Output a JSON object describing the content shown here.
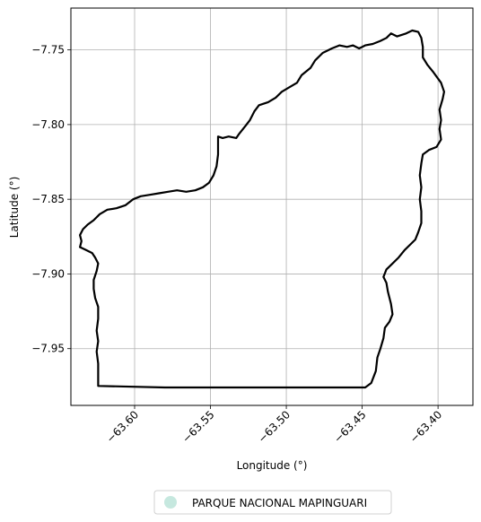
{
  "figure": {
    "xlabel": "Longitude (°)",
    "ylabel": "Latitude (°)",
    "legend_position": "bottom-center"
  },
  "chart_data": {
    "type": "map",
    "xlim": [
      -63.642,
      -63.377
    ],
    "ylim": [
      -7.988,
      -7.722
    ],
    "grid": true,
    "x_ticks": [
      {
        "value": -63.6,
        "label": "−63.60"
      },
      {
        "value": -63.55,
        "label": "−63.55"
      },
      {
        "value": -63.5,
        "label": "−63.50"
      },
      {
        "value": -63.45,
        "label": "−63.45"
      },
      {
        "value": -63.4,
        "label": "−63.40"
      }
    ],
    "y_ticks": [
      {
        "value": -7.75,
        "label": "−7.75"
      },
      {
        "value": -7.8,
        "label": "−7.80"
      },
      {
        "value": -7.85,
        "label": "−7.85"
      },
      {
        "value": -7.9,
        "label": "−7.90"
      },
      {
        "value": -7.95,
        "label": "−7.95"
      }
    ],
    "legend": [
      {
        "label": "PARQUE NACIONAL MAPINGUARI",
        "color": "#c6e8df"
      }
    ],
    "boundary": {
      "name": "PARQUE NACIONAL MAPINGUARI",
      "stroke": "#000000",
      "coordinates": [
        [
          -63.624,
          -7.975
        ],
        [
          -63.58,
          -7.976
        ],
        [
          -63.5,
          -7.976
        ],
        [
          -63.448,
          -7.976
        ],
        [
          -63.444,
          -7.973
        ],
        [
          -63.441,
          -7.965
        ],
        [
          -63.44,
          -7.956
        ],
        [
          -63.438,
          -7.95
        ],
        [
          -63.436,
          -7.943
        ],
        [
          -63.435,
          -7.936
        ],
        [
          -63.432,
          -7.932
        ],
        [
          -63.43,
          -7.927
        ],
        [
          -63.431,
          -7.92
        ],
        [
          -63.433,
          -7.912
        ],
        [
          -63.434,
          -7.906
        ],
        [
          -63.436,
          -7.902
        ],
        [
          -63.434,
          -7.897
        ],
        [
          -63.43,
          -7.893
        ],
        [
          -63.426,
          -7.889
        ],
        [
          -63.422,
          -7.884
        ],
        [
          -63.418,
          -7.88
        ],
        [
          -63.415,
          -7.877
        ],
        [
          -63.413,
          -7.872
        ],
        [
          -63.411,
          -7.866
        ],
        [
          -63.411,
          -7.858
        ],
        [
          -63.412,
          -7.85
        ],
        [
          -63.411,
          -7.842
        ],
        [
          -63.412,
          -7.834
        ],
        [
          -63.411,
          -7.826
        ],
        [
          -63.41,
          -7.82
        ],
        [
          -63.406,
          -7.817
        ],
        [
          -63.401,
          -7.815
        ],
        [
          -63.398,
          -7.81
        ],
        [
          -63.399,
          -7.803
        ],
        [
          -63.398,
          -7.797
        ],
        [
          -63.399,
          -7.79
        ],
        [
          -63.397,
          -7.783
        ],
        [
          -63.396,
          -7.778
        ],
        [
          -63.398,
          -7.772
        ],
        [
          -63.403,
          -7.765
        ],
        [
          -63.407,
          -7.76
        ],
        [
          -63.41,
          -7.755
        ],
        [
          -63.41,
          -7.748
        ],
        [
          -63.411,
          -7.742
        ],
        [
          -63.413,
          -7.738
        ],
        [
          -63.417,
          -7.737
        ],
        [
          -63.421,
          -7.739
        ],
        [
          -63.427,
          -7.741
        ],
        [
          -63.431,
          -7.739
        ],
        [
          -63.434,
          -7.742
        ],
        [
          -63.438,
          -7.744
        ],
        [
          -63.443,
          -7.746
        ],
        [
          -63.448,
          -7.747
        ],
        [
          -63.452,
          -7.749
        ],
        [
          -63.456,
          -7.747
        ],
        [
          -63.46,
          -7.748
        ],
        [
          -63.465,
          -7.747
        ],
        [
          -63.47,
          -7.749
        ],
        [
          -63.476,
          -7.752
        ],
        [
          -63.481,
          -7.757
        ],
        [
          -63.484,
          -7.762
        ],
        [
          -63.49,
          -7.767
        ],
        [
          -63.493,
          -7.772
        ],
        [
          -63.498,
          -7.775
        ],
        [
          -63.503,
          -7.778
        ],
        [
          -63.507,
          -7.782
        ],
        [
          -63.512,
          -7.785
        ],
        [
          -63.518,
          -7.787
        ],
        [
          -63.521,
          -7.791
        ],
        [
          -63.524,
          -7.797
        ],
        [
          -63.527,
          -7.801
        ],
        [
          -63.531,
          -7.806
        ],
        [
          -63.533,
          -7.809
        ],
        [
          -63.538,
          -7.808
        ],
        [
          -63.542,
          -7.809
        ],
        [
          -63.545,
          -7.808
        ],
        [
          -63.545,
          -7.812
        ],
        [
          -63.545,
          -7.82
        ],
        [
          -63.546,
          -7.828
        ],
        [
          -63.548,
          -7.834
        ],
        [
          -63.551,
          -7.839
        ],
        [
          -63.555,
          -7.842
        ],
        [
          -63.56,
          -7.844
        ],
        [
          -63.566,
          -7.845
        ],
        [
          -63.572,
          -7.844
        ],
        [
          -63.578,
          -7.845
        ],
        [
          -63.584,
          -7.846
        ],
        [
          -63.59,
          -7.847
        ],
        [
          -63.596,
          -7.848
        ],
        [
          -63.601,
          -7.85
        ],
        [
          -63.606,
          -7.854
        ],
        [
          -63.612,
          -7.856
        ],
        [
          -63.618,
          -7.857
        ],
        [
          -63.623,
          -7.86
        ],
        [
          -63.627,
          -7.864
        ],
        [
          -63.631,
          -7.867
        ],
        [
          -63.634,
          -7.87
        ],
        [
          -63.636,
          -7.874
        ],
        [
          -63.635,
          -7.878
        ],
        [
          -63.636,
          -7.882
        ],
        [
          -63.632,
          -7.884
        ],
        [
          -63.628,
          -7.886
        ],
        [
          -63.626,
          -7.889
        ],
        [
          -63.624,
          -7.893
        ],
        [
          -63.625,
          -7.898
        ],
        [
          -63.627,
          -7.904
        ],
        [
          -63.627,
          -7.91
        ],
        [
          -63.626,
          -7.916
        ],
        [
          -63.624,
          -7.922
        ],
        [
          -63.624,
          -7.93
        ],
        [
          -63.625,
          -7.938
        ],
        [
          -63.624,
          -7.945
        ],
        [
          -63.625,
          -7.952
        ],
        [
          -63.624,
          -7.96
        ],
        [
          -63.624,
          -7.968
        ],
        [
          -63.624,
          -7.975
        ]
      ]
    }
  }
}
